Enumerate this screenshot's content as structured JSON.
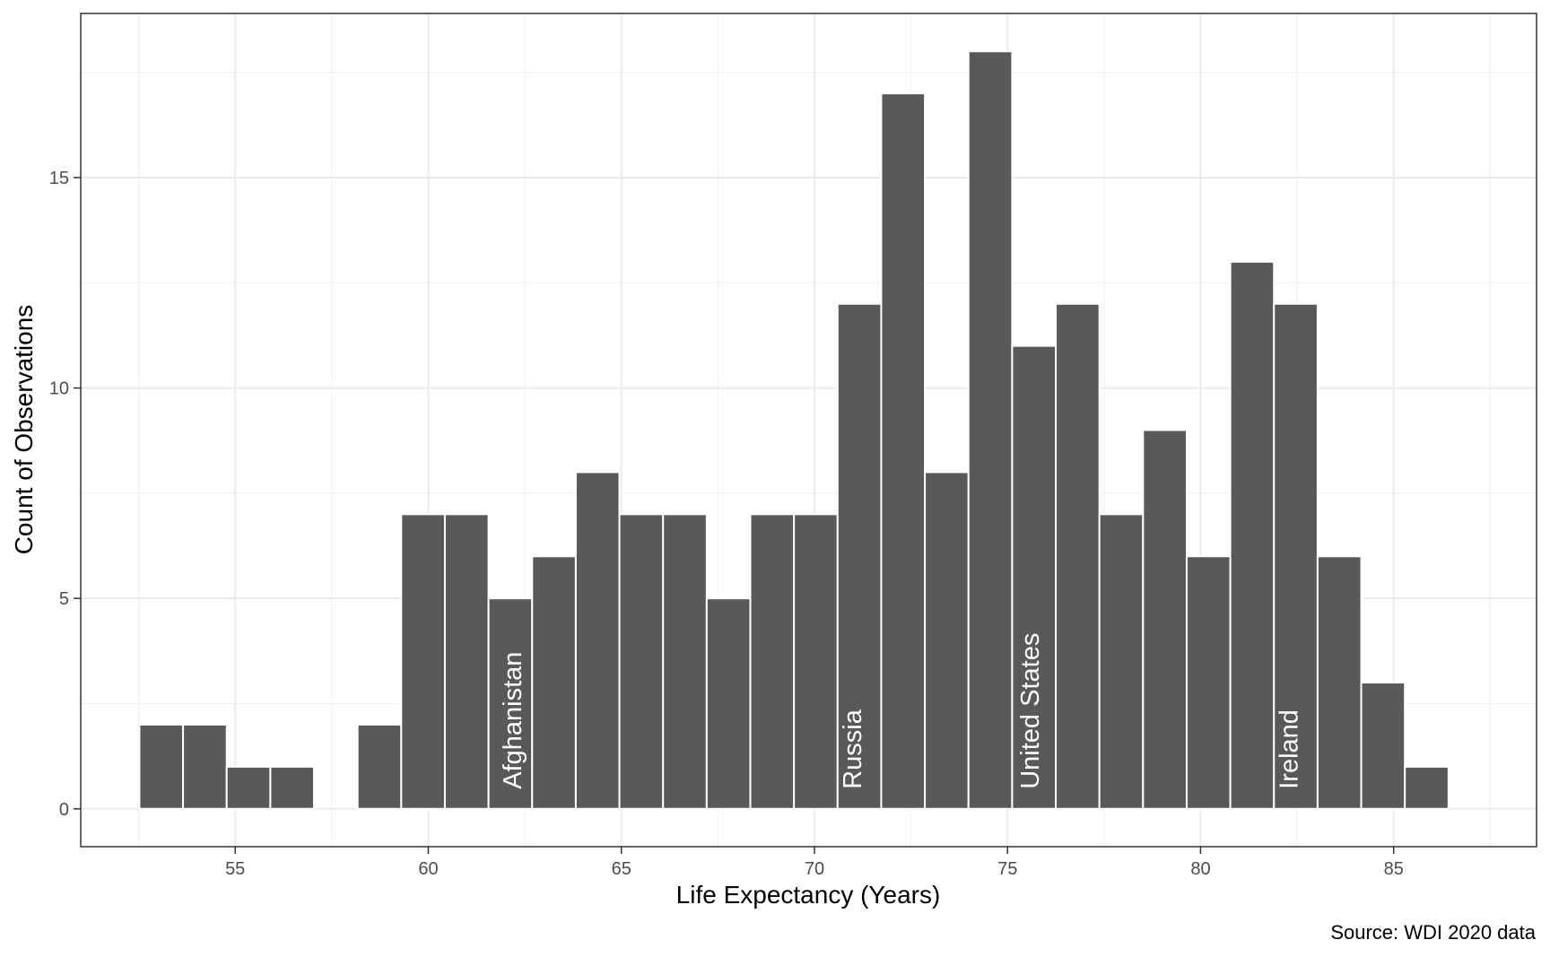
{
  "chart_data": {
    "type": "bar",
    "xlabel": "Life Expectancy (Years)",
    "ylabel": "Count of Observations",
    "caption": "Source: WDI 2020 data",
    "xlim": [
      51.0,
      88.7
    ],
    "ylim": [
      -0.9,
      18.9
    ],
    "x_ticks": [
      55,
      60,
      65,
      70,
      75,
      80,
      85
    ],
    "y_ticks": [
      0,
      5,
      10,
      15
    ],
    "bin_width": 1.13,
    "bin_start": 52.52,
    "counts": [
      2,
      2,
      1,
      1,
      0,
      2,
      7,
      7,
      5,
      6,
      8,
      7,
      7,
      5,
      7,
      7,
      12,
      17,
      8,
      18,
      11,
      12,
      7,
      9,
      6,
      13,
      12,
      6,
      3,
      1
    ],
    "grid": true,
    "colors": {
      "bar": "#595959",
      "bar_outline": "#ffffff",
      "grid": "#ebebeb",
      "panel_border": "#333333"
    },
    "annotations": [
      {
        "label": "Afghanistan",
        "x": 62.2
      },
      {
        "label": "Russia",
        "x": 71.0
      },
      {
        "label": "United States",
        "x": 75.6
      },
      {
        "label": "Ireland",
        "x": 82.3
      }
    ]
  }
}
